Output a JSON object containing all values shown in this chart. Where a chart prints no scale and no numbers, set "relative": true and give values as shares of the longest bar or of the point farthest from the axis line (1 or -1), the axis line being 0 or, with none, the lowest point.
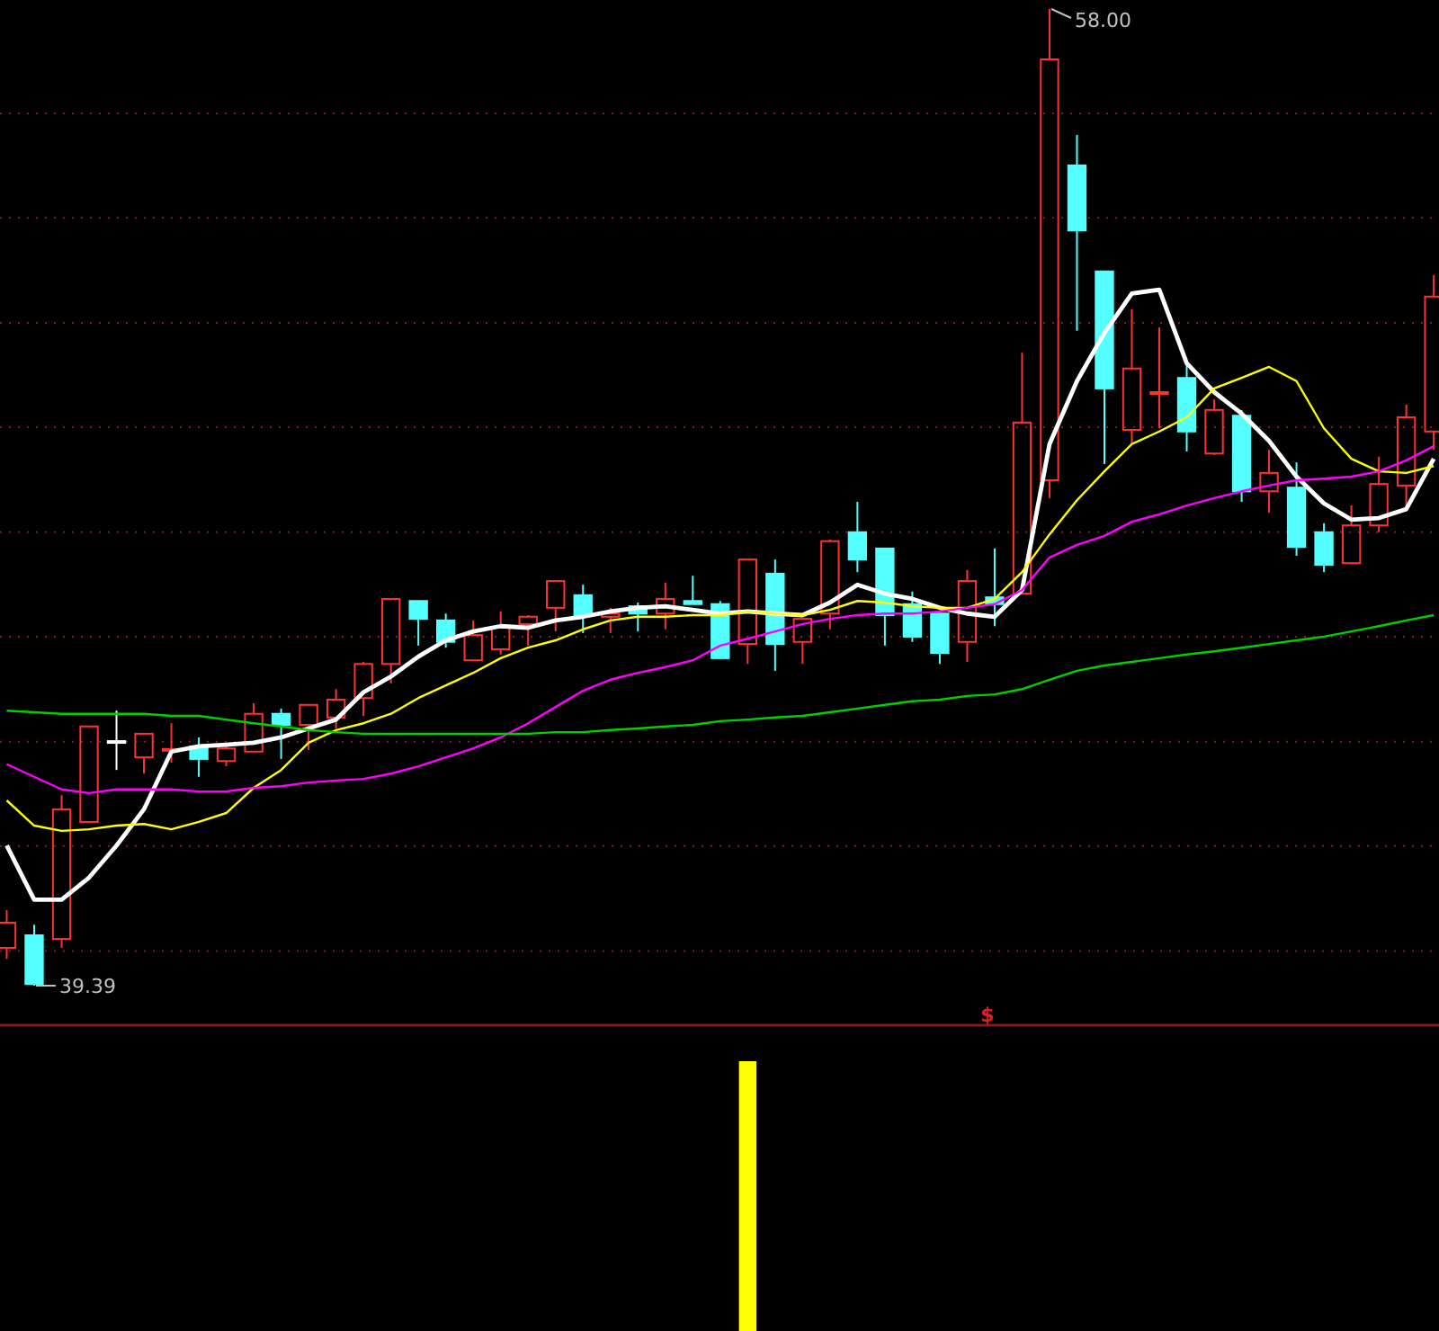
{
  "chart_data": [
    {
      "type": "candlestick",
      "grid": true,
      "yticks": [
        {
          "value": 56.01,
          "label": null
        },
        {
          "value": 54.02,
          "label": null
        },
        {
          "value": 52.02,
          "label": null
        },
        {
          "value": 50.03,
          "label": null
        },
        {
          "value": 48.03,
          "label": null
        },
        {
          "value": 46.04,
          "label": null
        },
        {
          "value": 44.04,
          "label": null
        },
        {
          "value": 42.05,
          "label": null
        },
        {
          "value": 40.05,
          "label": null
        }
      ],
      "categories": [
        null,
        null,
        null,
        null,
        null,
        null,
        null,
        null,
        null,
        null,
        null,
        null,
        null,
        null,
        null,
        null,
        null,
        null,
        null,
        null,
        null,
        null,
        null,
        null,
        null,
        null,
        null,
        null,
        null,
        null,
        null,
        null,
        null,
        null,
        null,
        null,
        null,
        null,
        null,
        null,
        null,
        null,
        null,
        null,
        null,
        null,
        null,
        null,
        null,
        null,
        null,
        null,
        null
      ],
      "ohlc": [
        [
          40.11,
          40.83,
          39.9,
          40.59
        ],
        [
          40.35,
          40.55,
          39.39,
          39.42
        ],
        [
          40.28,
          43.02,
          40.11,
          42.75
        ],
        [
          42.51,
          44.33,
          42.51,
          44.33
        ],
        [
          44.05,
          44.63,
          43.5,
          44.05
        ],
        [
          43.74,
          44.19,
          43.43,
          44.19
        ],
        [
          43.88,
          44.39,
          43.64,
          43.9
        ],
        [
          43.95,
          44.12,
          43.37,
          43.71
        ],
        [
          43.67,
          43.95,
          43.57,
          43.91
        ],
        [
          43.85,
          44.77,
          43.85,
          44.57
        ],
        [
          44.57,
          44.67,
          43.71,
          44.36
        ],
        [
          44.36,
          44.74,
          43.88,
          44.74
        ],
        [
          44.5,
          45.04,
          44.29,
          44.84
        ],
        [
          44.87,
          45.56,
          44.53,
          45.52
        ],
        [
          45.52,
          46.76,
          45.15,
          46.76
        ],
        [
          46.72,
          46.72,
          45.87,
          46.38
        ],
        [
          46.35,
          46.48,
          45.83,
          45.94
        ],
        [
          45.59,
          46.35,
          45.59,
          46.07
        ],
        [
          45.8,
          46.52,
          45.7,
          46.21
        ],
        [
          46.28,
          46.45,
          45.87,
          46.42
        ],
        [
          46.59,
          47.1,
          46.14,
          47.1
        ],
        [
          46.83,
          47.03,
          46.11,
          46.45
        ],
        [
          46.42,
          46.59,
          46.11,
          46.48
        ],
        [
          46.62,
          46.69,
          46.14,
          46.48
        ],
        [
          46.48,
          47.07,
          46.18,
          46.76
        ],
        [
          46.72,
          47.2,
          46.66,
          46.66
        ],
        [
          46.66,
          46.72,
          45.63,
          45.63
        ],
        [
          45.9,
          47.51,
          45.52,
          47.51
        ],
        [
          47.24,
          47.51,
          45.39,
          45.9
        ],
        [
          45.94,
          46.38,
          45.52,
          46.38
        ],
        [
          46.48,
          47.89,
          46.18,
          47.86
        ],
        [
          48.03,
          48.61,
          47.27,
          47.51
        ],
        [
          47.72,
          47.72,
          45.87,
          46.45
        ],
        [
          46.66,
          46.9,
          45.94,
          46.04
        ],
        [
          46.48,
          46.48,
          45.52,
          45.73
        ],
        [
          45.94,
          47.31,
          45.56,
          47.1
        ],
        [
          46.79,
          47.72,
          46.24,
          46.66
        ],
        [
          46.86,
          51.45,
          46.86,
          50.12
        ],
        [
          49.02,
          58.0,
          48.68,
          57.04
        ],
        [
          55.02,
          55.6,
          51.87,
          53.78
        ],
        [
          53.0,
          53.0,
          49.33,
          50.77
        ],
        [
          49.98,
          52.28,
          49.71,
          51.15
        ],
        [
          50.67,
          51.93,
          50.01,
          50.7
        ],
        [
          50.97,
          51.25,
          49.57,
          49.95
        ],
        [
          49.53,
          50.56,
          49.5,
          50.36
        ],
        [
          50.25,
          50.36,
          48.61,
          48.81
        ],
        [
          48.81,
          49.6,
          48.4,
          49.16
        ],
        [
          48.88,
          49.36,
          47.58,
          47.75
        ],
        [
          48.03,
          48.2,
          47.27,
          47.41
        ],
        [
          47.44,
          48.54,
          47.44,
          48.16
        ],
        [
          48.16,
          49.47,
          48.03,
          48.95
        ],
        [
          48.92,
          50.46,
          48.51,
          50.22
        ],
        [
          49.95,
          52.93,
          49.6,
          52.52
        ]
      ],
      "colors": [
        "#ff3232",
        "#54ffff",
        "#ff3232",
        "#ff3232",
        "#ffffff",
        "#ff3232",
        "#ff3232",
        "#54ffff",
        "#ff3232",
        "#ff3232",
        "#54ffff",
        "#ff3232",
        "#ff3232",
        "#ff3232",
        "#ff3232",
        "#54ffff",
        "#54ffff",
        "#ff3232",
        "#ff3232",
        "#ff3232",
        "#ff3232",
        "#54ffff",
        "#ff3232",
        "#54ffff",
        "#ff3232",
        "#54ffff",
        "#54ffff",
        "#ff3232",
        "#54ffff",
        "#ff3232",
        "#ff3232",
        "#54ffff",
        "#54ffff",
        "#54ffff",
        "#54ffff",
        "#ff3232",
        "#54ffff",
        "#ff3232",
        "#ff3232",
        "#54ffff",
        "#54ffff",
        "#ff3232",
        "#ff3232",
        "#54ffff",
        "#ff3232",
        "#54ffff",
        "#ff3232",
        "#54ffff",
        "#54ffff",
        "#ff3232",
        "#ff3232",
        "#ff3232",
        "#ff3232"
      ],
      "series": [
        {
          "type": "line",
          "color": "#ffffff",
          "values": [
            42.06,
            41.03,
            41.03,
            41.45,
            42.06,
            42.75,
            43.85,
            43.95,
            43.98,
            44.02,
            44.12,
            44.29,
            44.46,
            44.98,
            45.28,
            45.66,
            45.97,
            46.14,
            46.24,
            46.21,
            46.35,
            46.42,
            46.52,
            46.59,
            46.62,
            46.55,
            46.48,
            46.52,
            46.48,
            46.45,
            46.69,
            47.03,
            46.86,
            46.76,
            46.59,
            46.48,
            46.42,
            46.93,
            49.71,
            50.91,
            51.83,
            52.58,
            52.65,
            51.25,
            50.7,
            50.29,
            49.77,
            49.09,
            48.58,
            48.27,
            48.3,
            48.47,
            49.43
          ]
        },
        {
          "type": "line",
          "color": "#ffff00",
          "values": [
            42.92,
            42.44,
            42.34,
            42.37,
            42.44,
            42.47,
            42.37,
            42.51,
            42.68,
            43.16,
            43.5,
            44.02,
            44.26,
            44.39,
            44.57,
            44.87,
            45.11,
            45.35,
            45.63,
            45.83,
            45.97,
            46.18,
            46.35,
            46.42,
            46.42,
            46.45,
            46.45,
            46.52,
            46.48,
            46.45,
            46.55,
            46.72,
            46.69,
            46.62,
            46.59,
            46.59,
            46.76,
            47.27,
            47.99,
            48.64,
            49.19,
            49.71,
            49.95,
            50.22,
            50.77,
            50.97,
            51.18,
            50.91,
            50.01,
            49.43,
            49.19,
            49.16,
            49.29
          ]
        },
        {
          "type": "line",
          "color": "#ff00ff",
          "values": [
            43.61,
            43.37,
            43.13,
            43.06,
            43.13,
            43.13,
            43.13,
            43.09,
            43.09,
            43.16,
            43.19,
            43.26,
            43.3,
            43.33,
            43.43,
            43.57,
            43.74,
            43.91,
            44.12,
            44.39,
            44.7,
            45.01,
            45.22,
            45.35,
            45.46,
            45.59,
            45.87,
            46.0,
            46.14,
            46.28,
            46.38,
            46.45,
            46.48,
            46.48,
            46.52,
            46.59,
            46.66,
            46.93,
            47.55,
            47.79,
            47.96,
            48.23,
            48.37,
            48.54,
            48.68,
            48.81,
            48.92,
            49.02,
            49.05,
            49.09,
            49.19,
            49.4,
            49.67
          ]
        },
        {
          "type": "line",
          "color": "#00d000",
          "values": [
            44.63,
            44.6,
            44.57,
            44.57,
            44.57,
            44.57,
            44.53,
            44.53,
            44.46,
            44.39,
            44.33,
            44.26,
            44.22,
            44.19,
            44.19,
            44.19,
            44.19,
            44.19,
            44.19,
            44.19,
            44.22,
            44.22,
            44.26,
            44.29,
            44.33,
            44.36,
            44.43,
            44.46,
            44.5,
            44.53,
            44.6,
            44.67,
            44.74,
            44.81,
            44.84,
            44.91,
            44.94,
            45.04,
            45.22,
            45.39,
            45.49,
            45.56,
            45.63,
            45.7,
            45.76,
            45.83,
            45.9,
            45.97,
            46.04,
            46.14,
            46.24,
            46.35,
            46.45
          ]
        }
      ],
      "annotations": [
        "58.00",
        "39.39"
      ]
    },
    {
      "type": "bar",
      "relative": true,
      "color": "#ffff00",
      "annotations": [
        "$"
      ],
      "categories": [
        null,
        null,
        null,
        null,
        null,
        null,
        null,
        null,
        null,
        null,
        null,
        null,
        null,
        null,
        null,
        null,
        null,
        null,
        null,
        null,
        null,
        null,
        null,
        null,
        null,
        null,
        null,
        null,
        null,
        null,
        null,
        null,
        null,
        null,
        null,
        null,
        null,
        null,
        null,
        null,
        null,
        null,
        null,
        null,
        null,
        null,
        null,
        null,
        null,
        null,
        null,
        null,
        null
      ],
      "values": [
        null,
        null,
        null,
        null,
        null,
        null,
        null,
        null,
        null,
        null,
        null,
        null,
        null,
        null,
        null,
        null,
        null,
        null,
        null,
        null,
        null,
        null,
        null,
        null,
        null,
        null,
        null,
        1,
        null,
        null,
        null,
        null,
        null,
        null,
        null,
        null,
        null,
        null,
        null,
        null,
        null,
        null,
        null,
        null,
        null,
        null,
        null,
        null,
        null,
        null,
        null,
        null,
        null
      ]
    }
  ]
}
